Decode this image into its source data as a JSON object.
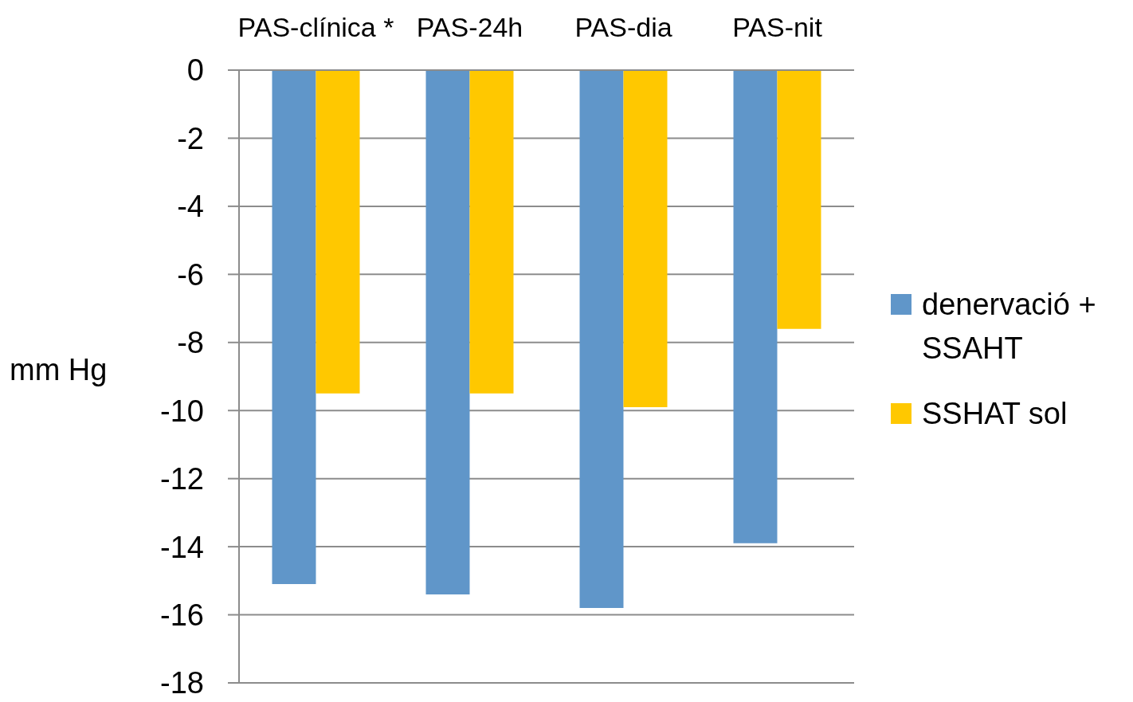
{
  "chart_data": {
    "type": "bar",
    "categories": [
      "PAS-clínica *",
      "PAS-24h",
      "PAS-dia",
      "PAS-nit"
    ],
    "ylabel": "mm Hg",
    "series": [
      {
        "name": "denervació + SSAHT",
        "color": "#6096c9",
        "values": [
          -15.1,
          -15.4,
          -15.8,
          -13.9
        ]
      },
      {
        "name": "SSHAT sol",
        "color": "#ffc800",
        "values": [
          -9.5,
          -9.5,
          -9.9,
          -7.6
        ]
      }
    ],
    "ylim": [
      -18,
      0
    ],
    "yticks": [
      -18,
      -16,
      -14,
      -12,
      -10,
      -8,
      -6,
      -4,
      -2,
      0
    ],
    "grid": "y",
    "legend": "right"
  }
}
